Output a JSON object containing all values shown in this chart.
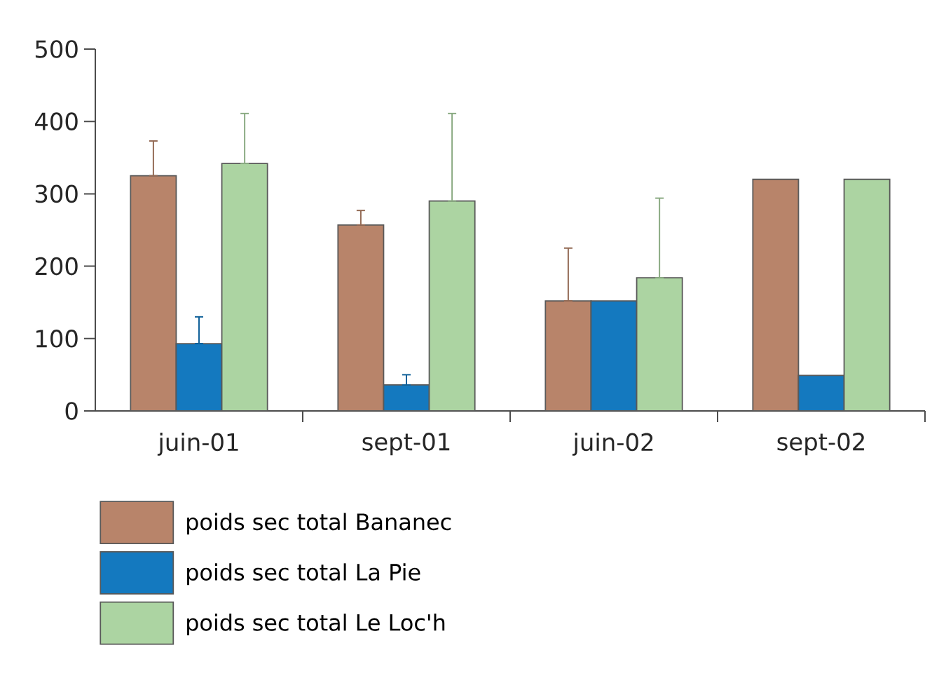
{
  "chart_data": {
    "type": "bar",
    "categories": [
      "juin-01",
      "sept-01",
      "juin-02",
      "sept-02"
    ],
    "series": [
      {
        "name": "poids sec total Bananec",
        "color": "#b8846a",
        "values": [
          325,
          257,
          152,
          320
        ],
        "errors": [
          [
            325,
            373
          ],
          [
            257,
            277
          ],
          [
            152,
            225
          ],
          null
        ]
      },
      {
        "name": "poids sec total La Pie",
        "color": "#1479bf",
        "values": [
          93,
          36,
          152,
          49
        ],
        "errors": [
          [
            93,
            130
          ],
          [
            36,
            50
          ],
          null,
          null
        ]
      },
      {
        "name": "poids sec total Le Loc'h",
        "color": "#acd4a2",
        "values": [
          342,
          290,
          184,
          320
        ],
        "errors": [
          [
            342,
            411
          ],
          [
            290,
            411
          ],
          [
            184,
            294
          ],
          null
        ]
      }
    ],
    "ylim": [
      0,
      500
    ],
    "yticks": [
      0,
      100,
      200,
      300,
      400,
      500
    ],
    "grid": false,
    "legend": "bottom"
  }
}
